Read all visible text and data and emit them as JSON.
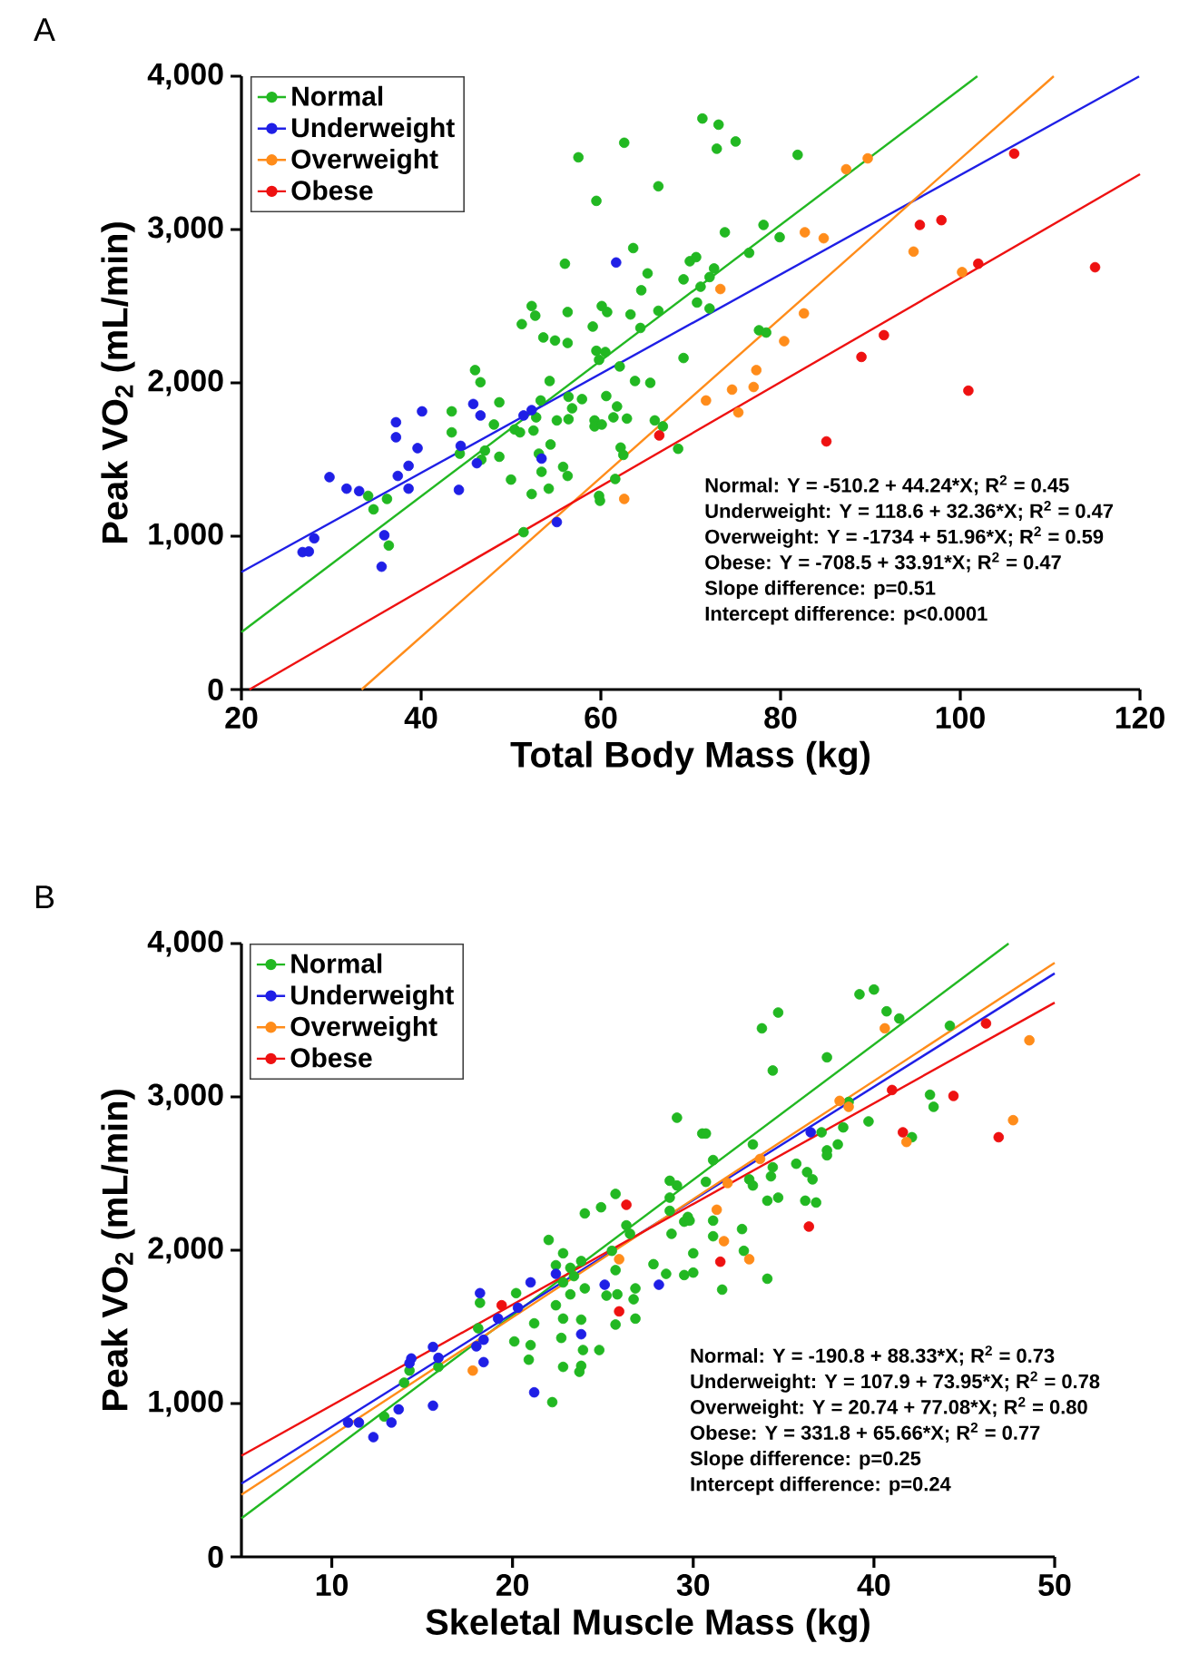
{
  "chart_data": [
    {
      "type": "scatter",
      "title": "A",
      "xlabel": "Total Body Mass (kg)",
      "ylabel": "Peak VO$_{2}$ (mL/min)",
      "xlim": [
        20,
        120
      ],
      "ylim": [
        0,
        4000
      ],
      "xticks": [
        20,
        40,
        60,
        80,
        100,
        120
      ],
      "yticks": [
        0,
        {
          "value": 1000,
          "label": "1,000"
        },
        {
          "value": 2000,
          "label": "2,000"
        },
        {
          "value": 3000,
          "label": "3,000"
        },
        {
          "value": 4000,
          "label": "4,000"
        }
      ],
      "legend": "top left",
      "grid": false,
      "annotations": [
        "Normal: Y = -510.2 + 44.24*X; R$^{2}$ = 0.45",
        "Underweight: Y = 118.6 + 32.36*X; R$^{2}$ = 0.47",
        "Overweight: Y = -1734 + 51.96*X; R$^{2}$ = 0.59",
        "Obese: Y = -708.5 + 33.91*X; R$^{2}$ = 0.47",
        "Slope difference: p=0.51",
        "Intercept difference: p<0.0001"
      ],
      "series": [
        {
          "name": "Normal",
          "type": "scatter",
          "marker": "circle",
          "color": "#22b822",
          "x": [
            71.3,
            57.5,
            62.6,
            66.4,
            59.5,
            56.0,
            63.6,
            65.2,
            64.5,
            69.9,
            69.2,
            52.3,
            52.7,
            56.3,
            60.1,
            60.7,
            63.3,
            51.2,
            53.6,
            54.9,
            56.3,
            59.1,
            64.4,
            66.4,
            69.2,
            59.5,
            60.5,
            62.1,
            59.8,
            46.0,
            46.6,
            54.3,
            63.8,
            65.5,
            48.7,
            43.4,
            53.3,
            56.4,
            57.9,
            56.8,
            55.1,
            56.4,
            59.3,
            60.6,
            61.8,
            61.4,
            62.9,
            59.3,
            60.1,
            52.8,
            50.4,
            51.0,
            52.5,
            48.1,
            43.4,
            44.3,
            46.7,
            47.1,
            48.7,
            53.1,
            54.4,
            53.4,
            55.8,
            56.3,
            50.0,
            52.3,
            54.2,
            62.2,
            62.5,
            61.6,
            59.8,
            59.9,
            66.0,
            66.9,
            68.6,
            34.1,
            34.7,
            36.2,
            36.4,
            51.4,
            70.6,
            73.1,
            72.9,
            75.0,
            81.9,
            73.8,
            78.1,
            79.9,
            76.5,
            71.1,
            72.6,
            72.1,
            70.7,
            72.1,
            77.6,
            78.4
          ],
          "values": [
            3724,
            3471,
            3566,
            3282,
            3187,
            2777,
            2879,
            2714,
            2604,
            2793,
            2675,
            2501,
            2438,
            2462,
            2501,
            2462,
            2446,
            2383,
            2296,
            2276,
            2260,
            2367,
            2358,
            2470,
            2162,
            2209,
            2201,
            2107,
            2150,
            2083,
            2004,
            2012,
            2012,
            2000,
            1873,
            1814,
            1885,
            1909,
            1894,
            1834,
            1755,
            1763,
            1755,
            1914,
            1846,
            1775,
            1767,
            1716,
            1728,
            1775,
            1696,
            1677,
            1689,
            1728,
            1677,
            1538,
            1499,
            1558,
            1518,
            1538,
            1598,
            1420,
            1452,
            1393,
            1369,
            1275,
            1310,
            1578,
            1530,
            1373,
            1263,
            1231,
            1755,
            1716,
            1570,
            1263,
            1175,
            1243,
            939,
            1026,
            2820,
            3684,
            3527,
            3574,
            3487,
            2982,
            3030,
            2950,
            2848,
            2627,
            2746,
            2690,
            2524,
            2485,
            2343,
            2328
          ]
        },
        {
          "name": "Underweight",
          "type": "scatter",
          "marker": "circle",
          "color": "#1f1fe6",
          "x": [
            61.7,
            40.1,
            37.2,
            37.2,
            45.8,
            46.6,
            39.6,
            29.8,
            31.7,
            33.1,
            38.6,
            37.4,
            38.6,
            44.2,
            44.4,
            46.2,
            51.4,
            52.3,
            53.4,
            55.1,
            35.9,
            35.6,
            28.1,
            26.8,
            27.5
          ],
          "values": [
            2785,
            1814,
            1743,
            1645,
            1862,
            1787,
            1574,
            1385,
            1310,
            1294,
            1459,
            1393,
            1310,
            1302,
            1589,
            1476,
            1787,
            1822,
            1506,
            1092,
            1006,
            801,
            986,
            896,
            900
          ]
        },
        {
          "name": "Overweight",
          "type": "scatter",
          "marker": "circle",
          "color": "#ff8c1a",
          "x": [
            87.3,
            89.7,
            82.7,
            84.8,
            94.8,
            100.2,
            73.3,
            82.6,
            80.4,
            77.3,
            77.0,
            74.6,
            71.7,
            75.3,
            62.6
          ],
          "values": [
            3393,
            3464,
            2982,
            2943,
            2856,
            2722,
            2612,
            2453,
            2272,
            2083,
            1973,
            1956,
            1885,
            1807,
            1243
          ]
        },
        {
          "name": "Obese",
          "type": "scatter",
          "marker": "circle",
          "color": "#ee1111",
          "x": [
            106.0,
            95.5,
            97.9,
            102.0,
            115.0,
            91.5,
            89.0,
            100.9,
            85.1,
            66.5
          ],
          "values": [
            3495,
            3030,
            3061,
            2777,
            2754,
            2311,
            2169,
            1949,
            1618,
            1657
          ]
        },
        {
          "type": "line",
          "marker": "none",
          "color": "#22b822",
          "x": [
            20,
            101.9
          ],
          "values": [
            374.6,
            4000
          ]
        },
        {
          "type": "line",
          "marker": "none",
          "color": "#1f1fe6",
          "x": [
            20,
            119.9
          ],
          "values": [
            765.8,
            3998.8
          ]
        },
        {
          "type": "line",
          "marker": "none",
          "color": "#ff8c1a",
          "x": [
            33.37,
            110.4
          ],
          "values": [
            0,
            4000
          ]
        },
        {
          "type": "line",
          "marker": "none",
          "color": "#ee1111",
          "x": [
            20.89,
            120
          ],
          "values": [
            0,
            3360.7
          ]
        }
      ]
    },
    {
      "type": "scatter",
      "title": "B",
      "xlabel": "Skeletal Muscle Mass (kg)",
      "ylabel": "Peak VO$_{2}$ (mL/min)",
      "xlim": [
        5,
        50
      ],
      "ylim": [
        0,
        4000
      ],
      "xticks": [
        10,
        20,
        30,
        40,
        50
      ],
      "yticks": [
        0,
        {
          "value": 1000,
          "label": "1,000"
        },
        {
          "value": 2000,
          "label": "2,000"
        },
        {
          "value": 3000,
          "label": "3,000"
        },
        {
          "value": 4000,
          "label": "4,000"
        }
      ],
      "legend": "top left",
      "grid": false,
      "annotations": [
        "Normal: Y = -190.8 + 88.33*X; R$^{2}$ = 0.73",
        "Underweight: Y = 107.9 + 73.95*X; R$^{2}$ = 0.78",
        "Overweight: Y = 20.74 + 77.08*X; R$^{2}$ = 0.80",
        "Obese: Y = 331.8 + 65.66*X; R$^{2}$ = 0.77",
        "Slope difference: p=0.25",
        "Intercept difference: p=0.24"
      ],
      "series": [
        {
          "name": "Normal",
          "type": "scatter",
          "marker": "circle",
          "color": "#22b822",
          "x": [
            29.1,
            30.5,
            28.7,
            29.1,
            28.7,
            28.7,
            29.7,
            29.5,
            28.8,
            30.0,
            25.7,
            24.0,
            24.9,
            26.3,
            26.5,
            22.0,
            22.8,
            23.8,
            22.4,
            23.2,
            23.4,
            22.8,
            24.0,
            23.2,
            22.4,
            22.8,
            22.7,
            23.8,
            23.9,
            24.8,
            23.8,
            23.7,
            22.8,
            22.2,
            25.5,
            25.7,
            25.2,
            25.8,
            26.8,
            26.7,
            26.8,
            25.7,
            27.8,
            28.5,
            29.5,
            30.0,
            20.2,
            21.2,
            21.0,
            20.9,
            20.1,
            18.2,
            18.1,
            15.9,
            14.3,
            14.0,
            12.9,
            29.8,
            30.7,
            31.1,
            30.7,
            33.3,
            33.1,
            33.3,
            34.4,
            34.3,
            35.7,
            36.3,
            36.6,
            34.1,
            34.7,
            36.2,
            36.8,
            37.4,
            37.4,
            38.0,
            38.3,
            37.1,
            38.6,
            39.7,
            42.1,
            43.1,
            43.3,
            44.2,
            39.2,
            40.0,
            40.7,
            41.4,
            33.8,
            34.7,
            34.4,
            37.4,
            31.1,
            31.1,
            32.7,
            32.8,
            31.6,
            34.1
          ],
          "values": [
            2864,
            2761,
            2453,
            2422,
            2343,
            2257,
            2217,
            2186,
            2107,
            1980,
            2367,
            2240,
            2280,
            2162,
            2107,
            2067,
            1980,
            1929,
            1902,
            1885,
            1831,
            1790,
            1751,
            1712,
            1641,
            1554,
            1428,
            1547,
            1349,
            1349,
            1246,
            1207,
            1239,
            1009,
            1996,
            1870,
            1704,
            1712,
            1751,
            1680,
            1554,
            1515,
            1909,
            1846,
            1838,
            1854,
            1720,
            1523,
            1381,
            1286,
            1405,
            1657,
            1491,
            1239,
            1215,
            1136,
            915,
            2193,
            2761,
            2588,
            2446,
            2690,
            2462,
            2422,
            2541,
            2482,
            2564,
            2509,
            2462,
            2323,
            2343,
            2323,
            2311,
            2651,
            2619,
            2690,
            2801,
            2769,
            2967,
            2840,
            2737,
            3014,
            2935,
            3464,
            3669,
            3700,
            3558,
            3511,
            3447,
            3550,
            3172,
            3258,
            2193,
            2091,
            2138,
            1996,
            1743,
            1814
          ]
        },
        {
          "name": "Underweight",
          "type": "scatter",
          "marker": "circle",
          "color": "#1f1fe6",
          "x": [
            18.2,
            21.0,
            22.4,
            20.3,
            19.2,
            18.4,
            18.0,
            18.4,
            15.6,
            15.9,
            14.4,
            14.3,
            15.6,
            13.7,
            13.3,
            10.9,
            11.5,
            12.3,
            21.2,
            23.8,
            25.1,
            28.1,
            36.5
          ],
          "values": [
            1720,
            1790,
            1846,
            1625,
            1554,
            1416,
            1373,
            1270,
            1369,
            1298,
            1294,
            1263,
            986,
            962,
            876,
            876,
            876,
            781,
            1073,
            1452,
            1775,
            1775,
            2769
          ]
        },
        {
          "name": "Overweight",
          "type": "scatter",
          "marker": "circle",
          "color": "#ff8c1a",
          "x": [
            17.8,
            25.9,
            40.6,
            48.6,
            47.7,
            38.1,
            38.6,
            41.8,
            33.7,
            31.9,
            31.3,
            31.7,
            33.1
          ],
          "values": [
            1215,
            1941,
            3447,
            3369,
            2848,
            2974,
            2935,
            2706,
            2595,
            2438,
            2264,
            2059,
            1941
          ]
        },
        {
          "name": "Obese",
          "type": "scatter",
          "marker": "circle",
          "color": "#ee1111",
          "x": [
            19.4,
            26.3,
            25.9,
            46.2,
            41.0,
            44.4,
            41.6,
            46.9,
            36.4,
            31.5
          ],
          "values": [
            1641,
            2296,
            1601,
            3479,
            3045,
            3006,
            2769,
            2737,
            2154,
            1925
          ]
        },
        {
          "type": "line",
          "marker": "none",
          "color": "#22b822",
          "x": [
            5,
            47.45
          ],
          "values": [
            251,
            4000
          ]
        },
        {
          "type": "line",
          "marker": "none",
          "color": "#1f1fe6",
          "x": [
            5,
            50
          ],
          "values": [
            477.65,
            3805.4
          ]
        },
        {
          "type": "line",
          "marker": "none",
          "color": "#ff8c1a",
          "x": [
            5,
            50
          ],
          "values": [
            406,
            3874.7
          ]
        },
        {
          "type": "line",
          "marker": "none",
          "color": "#ee1111",
          "x": [
            5,
            50
          ],
          "values": [
            660,
            3614.8
          ]
        }
      ]
    }
  ]
}
